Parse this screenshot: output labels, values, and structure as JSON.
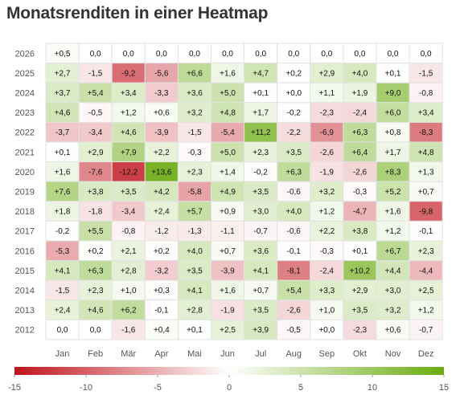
{
  "chart_data": {
    "type": "heatmap",
    "title": "Monatsrenditen in einer Heatmap",
    "x_categories": [
      "Jan",
      "Feb",
      "Mär",
      "Apr",
      "Mai",
      "Jun",
      "Jul",
      "Aug",
      "Sep",
      "Okt",
      "Nov",
      "Dez"
    ],
    "y_categories": [
      "2026",
      "2025",
      "2024",
      "2023",
      "2022",
      "2021",
      "2020",
      "2019",
      "2018",
      "2017",
      "2016",
      "2015",
      "2014",
      "2013",
      "2012"
    ],
    "values": [
      [
        0.5,
        0.0,
        0.0,
        0.0,
        0.0,
        0.0,
        0.0,
        0.0,
        0.0,
        0.0,
        0.0,
        0.0
      ],
      [
        2.7,
        -1.5,
        -9.2,
        -5.6,
        6.6,
        1.6,
        4.7,
        0.2,
        2.9,
        4.0,
        0.1,
        -1.5
      ],
      [
        3.7,
        5.4,
        3.4,
        -3.3,
        3.6,
        5.0,
        0.1,
        0.0,
        1.1,
        1.9,
        9.0,
        -0.8
      ],
      [
        4.6,
        -0.5,
        1.2,
        0.6,
        3.2,
        4.8,
        1.7,
        -0.2,
        -2.3,
        -2.4,
        6.0,
        3.4
      ],
      [
        -3.7,
        -3.4,
        4.6,
        -3.9,
        -1.5,
        -5.4,
        11.2,
        -2.2,
        -6.9,
        6.3,
        0.8,
        -8.3
      ],
      [
        0.1,
        2.9,
        7.9,
        2.2,
        -0.3,
        5.0,
        2.3,
        3.5,
        -2.6,
        6.4,
        1.7,
        4.8
      ],
      [
        1.6,
        -7.6,
        -12.2,
        13.6,
        2.3,
        1.4,
        -0.2,
        6.3,
        -1.9,
        -2.6,
        8.3,
        1.3
      ],
      [
        7.6,
        3.8,
        3.5,
        4.2,
        -5.8,
        4.9,
        3.5,
        -0.6,
        3.2,
        -0.3,
        5.2,
        0.7
      ],
      [
        1.8,
        -1.8,
        -3.4,
        2.4,
        5.7,
        0.9,
        3.0,
        4.0,
        1.2,
        -4.7,
        1.6,
        -9.8
      ],
      [
        -0.2,
        5.5,
        -0.8,
        -1.2,
        -1.3,
        -1.1,
        -0.7,
        -0.6,
        2.2,
        3.8,
        1.2,
        -0.1
      ],
      [
        -5.3,
        0.2,
        2.1,
        0.2,
        4.0,
        0.7,
        3.6,
        -0.1,
        -0.3,
        0.1,
        6.7,
        2.3
      ],
      [
        4.1,
        6.3,
        2.8,
        -3.2,
        3.5,
        -3.9,
        4.1,
        -8.1,
        -2.4,
        10.2,
        4.4,
        -4.4
      ],
      [
        -1.5,
        2.3,
        1.0,
        0.3,
        4.1,
        1.6,
        0.7,
        5.4,
        3.3,
        2.9,
        3.0,
        2.5
      ],
      [
        2.4,
        4.6,
        6.2,
        -0.1,
        2.8,
        -1.9,
        3.5,
        -2.6,
        1.0,
        3.5,
        3.2,
        1.2
      ],
      [
        0.0,
        0.0,
        -1.6,
        0.4,
        0.1,
        2.5,
        3.9,
        -0.5,
        0.0,
        -2.3,
        0.6,
        -0.7
      ]
    ],
    "labels": [
      [
        "+0,5",
        "0,0",
        "0,0",
        "0,0",
        "0,0",
        "0,0",
        "0,0",
        "0,0",
        "0,0",
        "0,0",
        "0,0",
        "0,0"
      ],
      [
        "+2,7",
        "-1,5",
        "-9,2",
        "-5,6",
        "+6,6",
        "+1,6",
        "+4,7",
        "+0,2",
        "+2,9",
        "+4,0",
        "+0,1",
        "-1,5"
      ],
      [
        "+3,7",
        "+5,4",
        "+3,4",
        "-3,3",
        "+3,6",
        "+5,0",
        "+0,1",
        "+0,0",
        "+1,1",
        "+1,9",
        "+9,0",
        "-0,8"
      ],
      [
        "+4,6",
        "-0,5",
        "+1,2",
        "+0,6",
        "+3,2",
        "+4,8",
        "+1,7",
        "-0,2",
        "-2,3",
        "-2,4",
        "+6,0",
        "+3,4"
      ],
      [
        "-3,7",
        "-3,4",
        "+4,6",
        "-3,9",
        "-1,5",
        "-5,4",
        "+11,2",
        "-2,2",
        "-6,9",
        "+6,3",
        "+0,8",
        "-8,3"
      ],
      [
        "+0,1",
        "+2,9",
        "+7,9",
        "+2,2",
        "-0,3",
        "+5,0",
        "+2,3",
        "+3,5",
        "-2,6",
        "+6,4",
        "+1,7",
        "+4,8"
      ],
      [
        "+1,6",
        "-7,6",
        "-12,2",
        "+13,6",
        "+2,3",
        "+1,4",
        "-0,2",
        "+6,3",
        "-1,9",
        "-2,6",
        "+8,3",
        "+1,3"
      ],
      [
        "+7,6",
        "+3,8",
        "+3,5",
        "+4,2",
        "-5,8",
        "+4,9",
        "+3,5",
        "-0,6",
        "+3,2",
        "-0,3",
        "+5,2",
        "+0,7"
      ],
      [
        "+1,8",
        "-1,8",
        "-3,4",
        "+2,4",
        "+5,7",
        "+0,9",
        "+3,0",
        "+4,0",
        "+1,2",
        "-4,7",
        "+1,6",
        "-9,8"
      ],
      [
        "-0,2",
        "+5,5",
        "-0,8",
        "-1,2",
        "-1,3",
        "-1,1",
        "-0,7",
        "-0,6",
        "+2,2",
        "+3,8",
        "+1,2",
        "-0,1"
      ],
      [
        "-5,3",
        "+0,2",
        "+2,1",
        "+0,2",
        "+4,0",
        "+0,7",
        "+3,6",
        "-0,1",
        "-0,3",
        "+0,1",
        "+6,7",
        "+2,3"
      ],
      [
        "+4,1",
        "+6,3",
        "+2,8",
        "-3,2",
        "+3,5",
        "-3,9",
        "+4,1",
        "-8,1",
        "-2,4",
        "+10,2",
        "+4,4",
        "-4,4"
      ],
      [
        "-1,5",
        "+2,3",
        "+1,0",
        "+0,3",
        "+4,1",
        "+1,6",
        "+0,7",
        "+5,4",
        "+3,3",
        "+2,9",
        "+3,0",
        "+2,5"
      ],
      [
        "+2,4",
        "+4,6",
        "+6,2",
        "-0,1",
        "+2,8",
        "-1,9",
        "+3,5",
        "-2,6",
        "+1,0",
        "+3,5",
        "+3,2",
        "+1,2"
      ],
      [
        "0,0",
        "0,0",
        "-1,6",
        "+0,4",
        "+0,1",
        "+2,5",
        "+3,9",
        "-0,5",
        "+0,0",
        "-2,3",
        "+0,6",
        "-0,7"
      ]
    ],
    "color_scale": {
      "min": -15,
      "max": 15,
      "low_color": "#c0121a",
      "mid_color": "#ffffff",
      "high_color": "#6aab10"
    },
    "colorbar_ticks": [
      {
        "value": -15,
        "label": "-15"
      },
      {
        "value": -10,
        "label": "-10"
      },
      {
        "value": -5,
        "label": "-5"
      },
      {
        "value": 0,
        "label": "0"
      },
      {
        "value": 5,
        "label": "5"
      },
      {
        "value": 10,
        "label": "10"
      },
      {
        "value": 15,
        "label": "15"
      }
    ]
  }
}
